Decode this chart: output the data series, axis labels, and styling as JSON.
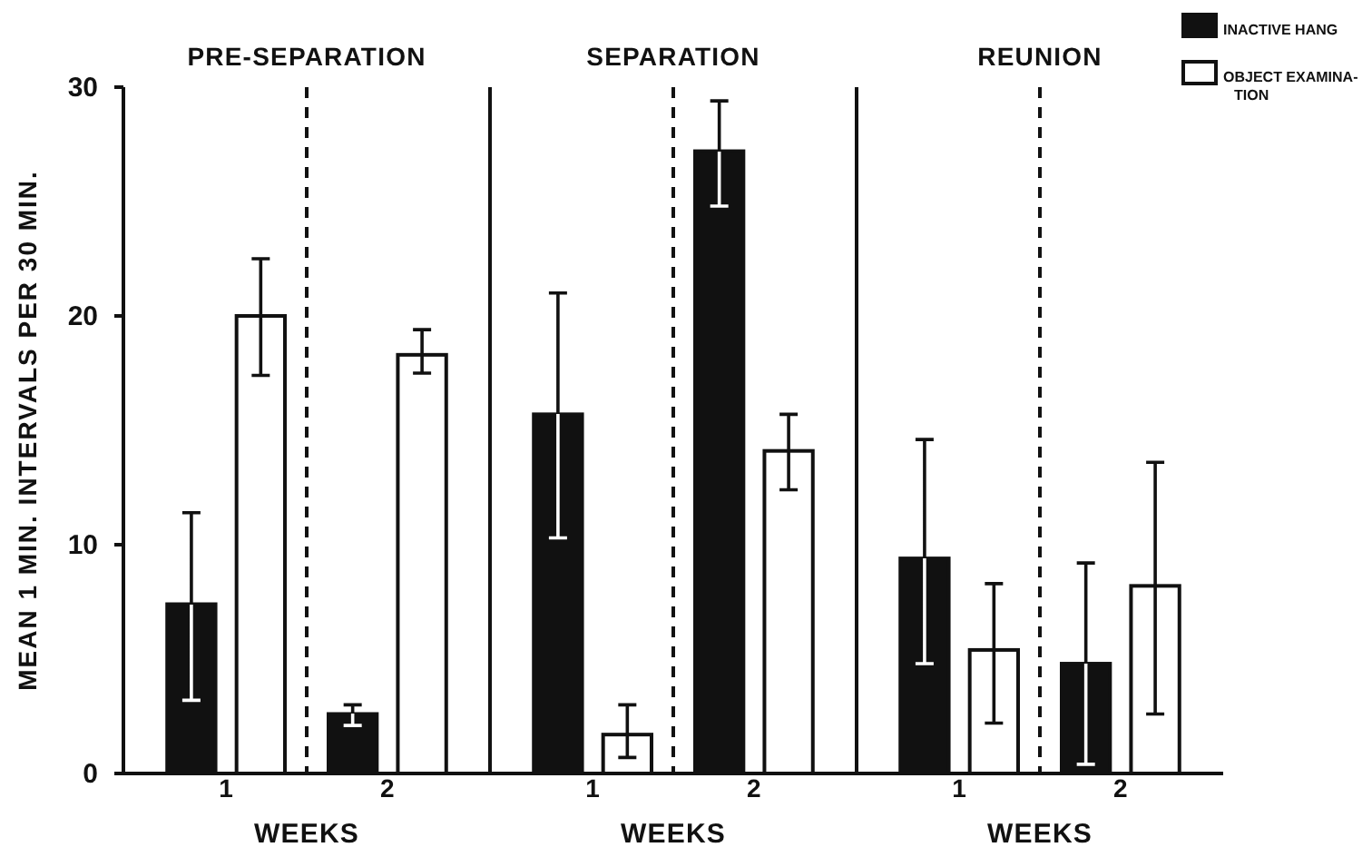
{
  "chart_data": [
    {
      "type": "bar",
      "title": "PRE-SEPARATION",
      "xlabel": "WEEKS",
      "ylabel": "MEAN 1 MIN. INTERVALS PER 30 MIN.",
      "categories": [
        "1",
        "2"
      ],
      "ylim": [
        0,
        30
      ],
      "yticks": [
        0,
        10,
        20,
        30
      ],
      "series": [
        {
          "color": "#111111",
          "values": [
            7.4,
            2.6
          ],
          "errors": [
            [
              3.2,
              11.4
            ],
            [
              2.1,
              3.0
            ]
          ]
        },
        {
          "color": "#ffffff",
          "values": [
            20.0,
            18.3
          ],
          "errors": [
            [
              17.4,
              22.5
            ],
            [
              17.5,
              19.4
            ]
          ]
        }
      ],
      "grid": false
    },
    {
      "type": "bar",
      "title": "SEPARATION",
      "xlabel": "WEEKS",
      "categories": [
        "1",
        "2"
      ],
      "ylim": [
        0,
        30
      ],
      "yticks": [
        0,
        10,
        20,
        30
      ],
      "tick_labels": "x",
      "series": [
        {
          "color": "#111111",
          "values": [
            15.7,
            27.2
          ],
          "errors": [
            [
              10.3,
              21.0
            ],
            [
              24.8,
              29.4
            ]
          ]
        },
        {
          "color": "#ffffff",
          "values": [
            1.7,
            14.1
          ],
          "errors": [
            [
              0.7,
              3.0
            ],
            [
              12.4,
              15.7
            ]
          ]
        }
      ],
      "grid": false
    },
    {
      "type": "bar",
      "title": "REUNION",
      "xlabel": "WEEKS",
      "categories": [
        "1",
        "2"
      ],
      "ylim": [
        0,
        30
      ],
      "yticks": [
        0,
        10,
        20,
        30
      ],
      "tick_labels": "x",
      "series": [
        {
          "name": "INACTIVE HANG",
          "color": "#111111",
          "values": [
            9.4,
            4.8
          ],
          "errors": [
            [
              4.8,
              14.6
            ],
            [
              0.4,
              9.2
            ]
          ]
        },
        {
          "name": "OBJECT EXAMINA-TION",
          "color": "#ffffff",
          "values": [
            5.4,
            8.2
          ],
          "errors": [
            [
              2.2,
              8.3
            ],
            [
              2.6,
              13.6
            ]
          ]
        }
      ],
      "legend": "top right",
      "grid": false
    }
  ]
}
